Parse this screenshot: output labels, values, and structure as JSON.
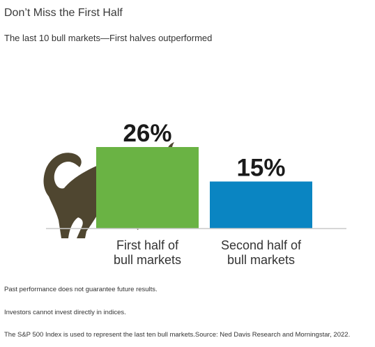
{
  "header": {
    "title": "Don’t Miss the First Half",
    "subtitle": "The last 10 bull markets—First halves outperformed"
  },
  "chart_data": {
    "type": "bar",
    "categories": [
      [
        "First half of",
        "bull markets"
      ],
      [
        "Second half of",
        "bull markets"
      ]
    ],
    "values": [
      26,
      15
    ],
    "value_labels": [
      "26%",
      "15%"
    ],
    "colors": [
      "#6ab344",
      "#0a85c2"
    ],
    "ylim": [
      0,
      30
    ],
    "grid": false,
    "decoration": "bull-icon"
  },
  "footnotes": [
    "Past performance does not guarantee future results.",
    "Investors cannot invest directly in indices.",
    "The S&P 500 Index is used to represent the last ten bull markets.Source: Ned Davis Research and Morningstar, 2022."
  ]
}
